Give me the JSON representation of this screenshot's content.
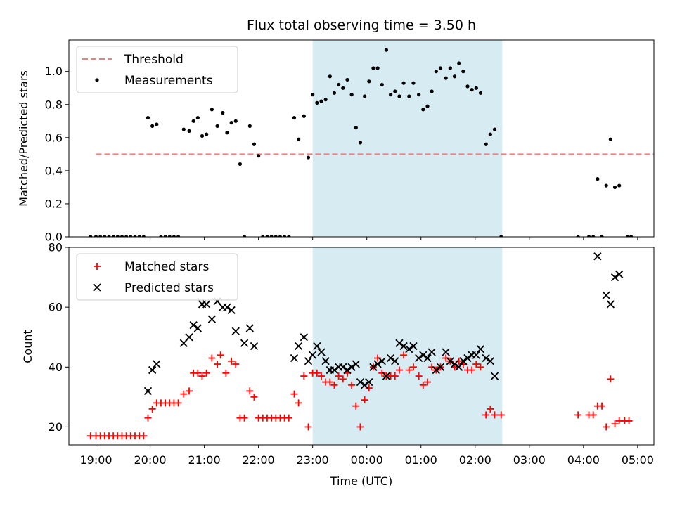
{
  "chart_data": [
    {
      "type": "scatter",
      "title": "Flux total observing time = 3.50 h",
      "xlabel": "",
      "ylabel": "Matched/Predicted stars",
      "xlim": [
        -0.5,
        10.3
      ],
      "ylim": [
        0.0,
        1.19
      ],
      "yticks": [
        "0.0",
        "0.2",
        "0.4",
        "0.6",
        "0.8",
        "1.0"
      ],
      "highlight_span": {
        "x0": 4.0,
        "x1": 7.5,
        "color": "#add8e6"
      },
      "legend": {
        "position": "upper-left",
        "entries": [
          "Threshold",
          "Measurements"
        ]
      },
      "threshold": {
        "name": "Threshold",
        "value": 0.5,
        "x_range": [
          0.0,
          11.0
        ],
        "color": "#f08080"
      },
      "measurements": {
        "name": "Measurements",
        "color": "#000000",
        "points": [
          [
            -0.1,
            0
          ],
          [
            0,
            0
          ],
          [
            0.08,
            0
          ],
          [
            0.16,
            0
          ],
          [
            0.24,
            0
          ],
          [
            0.32,
            0
          ],
          [
            0.4,
            0
          ],
          [
            0.48,
            0
          ],
          [
            0.56,
            0
          ],
          [
            0.64,
            0
          ],
          [
            0.72,
            0
          ],
          [
            0.8,
            0
          ],
          [
            0.88,
            0
          ],
          [
            0.96,
            0.72
          ],
          [
            1.04,
            0.67
          ],
          [
            1.12,
            0.68
          ],
          [
            1.2,
            0
          ],
          [
            1.28,
            0
          ],
          [
            1.36,
            0
          ],
          [
            1.44,
            0
          ],
          [
            1.52,
            0
          ],
          [
            1.62,
            0.65
          ],
          [
            1.72,
            0.64
          ],
          [
            1.8,
            0.7
          ],
          [
            1.88,
            0.72
          ],
          [
            1.96,
            0.61
          ],
          [
            2.04,
            0.62
          ],
          [
            2.14,
            0.77
          ],
          [
            2.24,
            0.67
          ],
          [
            2.34,
            0.75
          ],
          [
            2.42,
            0.63
          ],
          [
            2.5,
            0.69
          ],
          [
            2.58,
            0.7
          ],
          [
            2.66,
            0.44
          ],
          [
            2.74,
            0
          ],
          [
            2.84,
            0.67
          ],
          [
            2.92,
            0.56
          ],
          [
            3.0,
            0.49
          ],
          [
            3.08,
            0
          ],
          [
            3.16,
            0
          ],
          [
            3.24,
            0
          ],
          [
            3.32,
            0
          ],
          [
            3.4,
            0
          ],
          [
            3.48,
            0
          ],
          [
            3.56,
            0
          ],
          [
            3.66,
            0.72
          ],
          [
            3.74,
            0.59
          ],
          [
            3.84,
            0.73
          ],
          [
            3.92,
            0.48
          ],
          [
            4.0,
            0.86
          ],
          [
            4.08,
            0.81
          ],
          [
            4.16,
            0.82
          ],
          [
            4.24,
            0.83
          ],
          [
            4.32,
            0.97
          ],
          [
            4.4,
            0.87
          ],
          [
            4.48,
            0.92
          ],
          [
            4.56,
            0.9
          ],
          [
            4.64,
            0.95
          ],
          [
            4.72,
            0.86
          ],
          [
            4.8,
            0.66
          ],
          [
            4.88,
            0.57
          ],
          [
            4.96,
            0.85
          ],
          [
            5.04,
            0.94
          ],
          [
            5.12,
            1.02
          ],
          [
            5.2,
            1.02
          ],
          [
            5.28,
            0.92
          ],
          [
            5.36,
            1.13
          ],
          [
            5.44,
            0.86
          ],
          [
            5.52,
            0.88
          ],
          [
            5.6,
            0.85
          ],
          [
            5.68,
            0.93
          ],
          [
            5.78,
            0.85
          ],
          [
            5.86,
            0.93
          ],
          [
            5.96,
            0.86
          ],
          [
            6.04,
            0.77
          ],
          [
            6.12,
            0.79
          ],
          [
            6.2,
            0.88
          ],
          [
            6.28,
            1.0
          ],
          [
            6.36,
            1.02
          ],
          [
            6.46,
            0.96
          ],
          [
            6.54,
            1.02
          ],
          [
            6.62,
            0.97
          ],
          [
            6.7,
            1.05
          ],
          [
            6.78,
            1.0
          ],
          [
            6.86,
            0.91
          ],
          [
            6.94,
            0.89
          ],
          [
            7.02,
            0.9
          ],
          [
            7.1,
            0.87
          ],
          [
            7.2,
            0.56
          ],
          [
            7.28,
            0.62
          ],
          [
            7.36,
            0.65
          ],
          [
            7.48,
            0
          ],
          [
            8.9,
            0
          ],
          [
            9.1,
            0
          ],
          [
            9.18,
            0
          ],
          [
            9.26,
            0.35
          ],
          [
            9.34,
            0
          ],
          [
            9.42,
            0.31
          ],
          [
            9.5,
            0.59
          ],
          [
            9.58,
            0.3
          ],
          [
            9.66,
            0.31
          ],
          [
            9.82,
            0
          ],
          [
            9.88,
            0
          ]
        ]
      }
    },
    {
      "type": "scatter",
      "title": "",
      "xlabel": "Time (UTC)",
      "ylabel": "Count",
      "xlim": [
        -0.5,
        10.3
      ],
      "ylim": [
        14,
        80
      ],
      "yticks": [
        "20",
        "40",
        "60",
        "80"
      ],
      "x_tick_labels": [
        "19:00",
        "20:00",
        "21:00",
        "22:00",
        "23:00",
        "00:00",
        "01:00",
        "02:00",
        "03:00",
        "04:00",
        "05:00"
      ],
      "highlight_span": {
        "x0": 4.0,
        "x1": 7.5,
        "color": "#add8e6"
      },
      "legend": {
        "position": "upper-left",
        "entries": [
          "Matched stars",
          "Predicted stars"
        ]
      },
      "series": [
        {
          "name": "Matched stars",
          "marker": "plus",
          "color": "#ff0000",
          "points": [
            [
              -0.1,
              17
            ],
            [
              0,
              17
            ],
            [
              0.08,
              17
            ],
            [
              0.16,
              17
            ],
            [
              0.24,
              17
            ],
            [
              0.32,
              17
            ],
            [
              0.4,
              17
            ],
            [
              0.48,
              17
            ],
            [
              0.56,
              17
            ],
            [
              0.64,
              17
            ],
            [
              0.72,
              17
            ],
            [
              0.8,
              17
            ],
            [
              0.88,
              17
            ],
            [
              0.96,
              23
            ],
            [
              1.04,
              26
            ],
            [
              1.12,
              28
            ],
            [
              1.2,
              28
            ],
            [
              1.28,
              28
            ],
            [
              1.36,
              28
            ],
            [
              1.44,
              28
            ],
            [
              1.52,
              28
            ],
            [
              1.62,
              31
            ],
            [
              1.72,
              32
            ],
            [
              1.8,
              38
            ],
            [
              1.88,
              38
            ],
            [
              1.96,
              37
            ],
            [
              2.04,
              38
            ],
            [
              2.14,
              43
            ],
            [
              2.24,
              41
            ],
            [
              2.3,
              44
            ],
            [
              2.4,
              38
            ],
            [
              2.5,
              42
            ],
            [
              2.58,
              41
            ],
            [
              2.66,
              23
            ],
            [
              2.74,
              23
            ],
            [
              2.84,
              32
            ],
            [
              2.92,
              30
            ],
            [
              3.0,
              23
            ],
            [
              3.08,
              23
            ],
            [
              3.16,
              23
            ],
            [
              3.24,
              23
            ],
            [
              3.32,
              23
            ],
            [
              3.4,
              23
            ],
            [
              3.48,
              23
            ],
            [
              3.56,
              23
            ],
            [
              3.66,
              31
            ],
            [
              3.74,
              28
            ],
            [
              3.84,
              37
            ],
            [
              3.92,
              20
            ],
            [
              4.0,
              38
            ],
            [
              4.08,
              38
            ],
            [
              4.16,
              37
            ],
            [
              4.24,
              35
            ],
            [
              4.32,
              35
            ],
            [
              4.4,
              34
            ],
            [
              4.48,
              37
            ],
            [
              4.56,
              36
            ],
            [
              4.64,
              38
            ],
            [
              4.72,
              34
            ],
            [
              4.8,
              27
            ],
            [
              4.88,
              20
            ],
            [
              4.96,
              29
            ],
            [
              5.04,
              33
            ],
            [
              5.12,
              40
            ],
            [
              5.2,
              43
            ],
            [
              5.28,
              38
            ],
            [
              5.36,
              37
            ],
            [
              5.44,
              37
            ],
            [
              5.52,
              37
            ],
            [
              5.6,
              39
            ],
            [
              5.68,
              44
            ],
            [
              5.78,
              39
            ],
            [
              5.86,
              40
            ],
            [
              5.96,
              37
            ],
            [
              6.04,
              34
            ],
            [
              6.12,
              35
            ],
            [
              6.2,
              40
            ],
            [
              6.28,
              39
            ],
            [
              6.36,
              40
            ],
            [
              6.46,
              43
            ],
            [
              6.54,
              42
            ],
            [
              6.62,
              40
            ],
            [
              6.7,
              42
            ],
            [
              6.78,
              41
            ],
            [
              6.86,
              39
            ],
            [
              6.94,
              39
            ],
            [
              7.02,
              41
            ],
            [
              7.1,
              40
            ],
            [
              7.2,
              24
            ],
            [
              7.28,
              26
            ],
            [
              7.36,
              24
            ],
            [
              7.48,
              24
            ],
            [
              8.9,
              24
            ],
            [
              9.1,
              24
            ],
            [
              9.18,
              24
            ],
            [
              9.26,
              27
            ],
            [
              9.34,
              27
            ],
            [
              9.42,
              20
            ],
            [
              9.5,
              36
            ],
            [
              9.58,
              21
            ],
            [
              9.66,
              22
            ],
            [
              9.76,
              22
            ],
            [
              9.84,
              22
            ]
          ]
        },
        {
          "name": "Predicted stars",
          "marker": "x",
          "color": "#000000",
          "points": [
            [
              0.96,
              32
            ],
            [
              1.04,
              39
            ],
            [
              1.12,
              41
            ],
            [
              1.62,
              48
            ],
            [
              1.72,
              50
            ],
            [
              1.8,
              54
            ],
            [
              1.88,
              53
            ],
            [
              1.96,
              61
            ],
            [
              2.04,
              61
            ],
            [
              2.14,
              56
            ],
            [
              2.24,
              62
            ],
            [
              2.34,
              60
            ],
            [
              2.42,
              60
            ],
            [
              2.5,
              59
            ],
            [
              2.58,
              52
            ],
            [
              2.74,
              48
            ],
            [
              2.84,
              53
            ],
            [
              2.92,
              47
            ],
            [
              3.66,
              43
            ],
            [
              3.74,
              47
            ],
            [
              3.84,
              50
            ],
            [
              3.92,
              42
            ],
            [
              4.0,
              44
            ],
            [
              4.08,
              47
            ],
            [
              4.16,
              45
            ],
            [
              4.24,
              42
            ],
            [
              4.32,
              39
            ],
            [
              4.4,
              39
            ],
            [
              4.48,
              40
            ],
            [
              4.56,
              40
            ],
            [
              4.64,
              39
            ],
            [
              4.72,
              40
            ],
            [
              4.8,
              41
            ],
            [
              4.88,
              35
            ],
            [
              4.96,
              34
            ],
            [
              5.04,
              35
            ],
            [
              5.12,
              40
            ],
            [
              5.2,
              41
            ],
            [
              5.28,
              42
            ],
            [
              5.36,
              37
            ],
            [
              5.44,
              43
            ],
            [
              5.52,
              42
            ],
            [
              5.6,
              48
            ],
            [
              5.68,
              47
            ],
            [
              5.78,
              46
            ],
            [
              5.86,
              47
            ],
            [
              5.96,
              43
            ],
            [
              6.04,
              44
            ],
            [
              6.12,
              43
            ],
            [
              6.2,
              45
            ],
            [
              6.28,
              39
            ],
            [
              6.36,
              40
            ],
            [
              6.46,
              45
            ],
            [
              6.54,
              42
            ],
            [
              6.62,
              41
            ],
            [
              6.7,
              40
            ],
            [
              6.78,
              42
            ],
            [
              6.86,
              43
            ],
            [
              6.94,
              44
            ],
            [
              7.02,
              44
            ],
            [
              7.1,
              46
            ],
            [
              7.2,
              43
            ],
            [
              7.28,
              42
            ],
            [
              7.36,
              37
            ],
            [
              9.26,
              77
            ],
            [
              9.42,
              64
            ],
            [
              9.5,
              61
            ],
            [
              9.58,
              70
            ],
            [
              9.66,
              71
            ]
          ]
        }
      ]
    }
  ]
}
